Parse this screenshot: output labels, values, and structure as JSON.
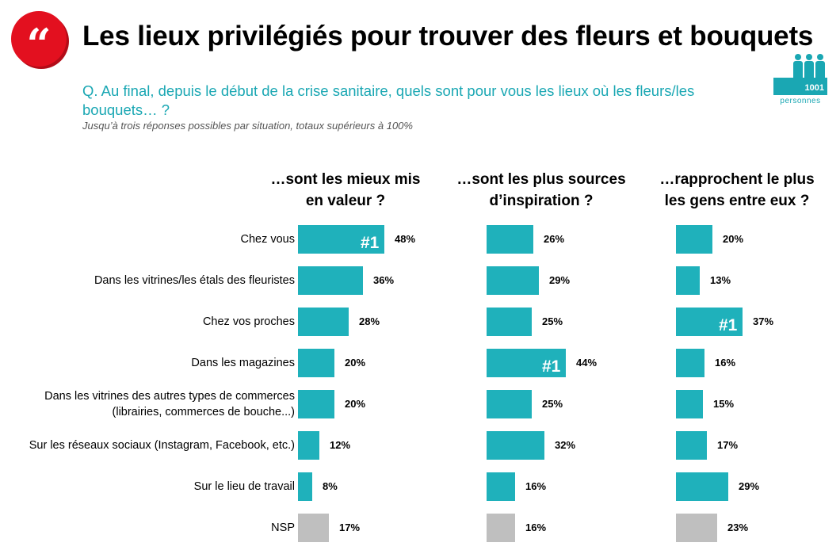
{
  "header": {
    "quote_glyph": "“",
    "title": "Les lieux privilégiés pour trouver des fleurs et bouquets",
    "question": "Q. Au final, depuis le début de la crise sanitaire, quels sont pour vous les lieux où les fleurs/les bouquets… ?",
    "note": "Jusqu’à trois réponses possibles par situation, totaux supérieurs à 100%"
  },
  "sample_badge": {
    "count": "1001",
    "label": "personnes"
  },
  "colors": {
    "accent_red": "#e3101f",
    "bar_teal": "#1fb1bb",
    "bar_gray": "#bfbfbf",
    "question_teal": "#1aa7b3"
  },
  "rank_label": "#1",
  "chart_data": [
    {
      "type": "bar",
      "orientation": "horizontal",
      "title": "…sont les mieux mis en valeur ?",
      "categories": [
        "Chez vous",
        "Dans les vitrines/les étals des fleuristes",
        "Chez vos proches",
        "Dans les magazines",
        "Dans les vitrines des autres types de commerces (librairies, commerces de bouche...)",
        "Sur les réseaux sociaux (Instagram, Facebook, etc.)",
        "Sur le lieu de travail",
        "NSP"
      ],
      "values": [
        48,
        36,
        28,
        20,
        20,
        12,
        8,
        17
      ],
      "value_labels": [
        "48%",
        "36%",
        "28%",
        "20%",
        "20%",
        "12%",
        "8%",
        "17%"
      ],
      "top_rank_index": 0
    },
    {
      "type": "bar",
      "orientation": "horizontal",
      "title": "…sont les plus sources d’inspiration ?",
      "categories": [
        "Chez vous",
        "Dans les vitrines/les étals des fleuristes",
        "Chez vos proches",
        "Dans les magazines",
        "Dans les vitrines des autres types de commerces (librairies, commerces de bouche...)",
        "Sur les réseaux sociaux (Instagram, Facebook, etc.)",
        "Sur le lieu de travail",
        "NSP"
      ],
      "values": [
        26,
        29,
        25,
        44,
        25,
        32,
        16,
        16
      ],
      "value_labels": [
        "26%",
        "29%",
        "25%",
        "44%",
        "25%",
        "32%",
        "16%",
        "16%"
      ],
      "top_rank_index": 3
    },
    {
      "type": "bar",
      "orientation": "horizontal",
      "title": "…rapprochent le plus les gens entre eux ?",
      "categories": [
        "Chez vous",
        "Dans les vitrines/les étals des fleuristes",
        "Chez vos proches",
        "Dans les magazines",
        "Dans les vitrines des autres types de commerces (librairies, commerces de bouche...)",
        "Sur les réseaux sociaux (Instagram, Facebook, etc.)",
        "Sur le lieu de travail",
        "NSP"
      ],
      "values": [
        20,
        13,
        37,
        16,
        15,
        17,
        29,
        23
      ],
      "value_labels": [
        "20%",
        "13%",
        "37%",
        "16%",
        "15%",
        "17%",
        "29%",
        "23%"
      ],
      "top_rank_index": 2
    }
  ],
  "row_labels": [
    [
      "Chez vous"
    ],
    [
      "Dans les vitrines/les étals des fleuristes"
    ],
    [
      "Chez vos proches"
    ],
    [
      "Dans les magazines"
    ],
    [
      "Dans les vitrines des autres types de commerces",
      "(librairies, commerces de bouche...)"
    ],
    [
      "Sur les réseaux sociaux (Instagram, Facebook, etc.)"
    ],
    [
      "Sur le lieu de travail"
    ],
    [
      "NSP"
    ]
  ],
  "column_heads": [
    [
      "…sont les mieux mis",
      "en valeur ?"
    ],
    [
      "…sont les plus sources",
      "d’inspiration ?"
    ],
    [
      "…rapprochent le plus",
      "les gens entre eux ?"
    ]
  ]
}
